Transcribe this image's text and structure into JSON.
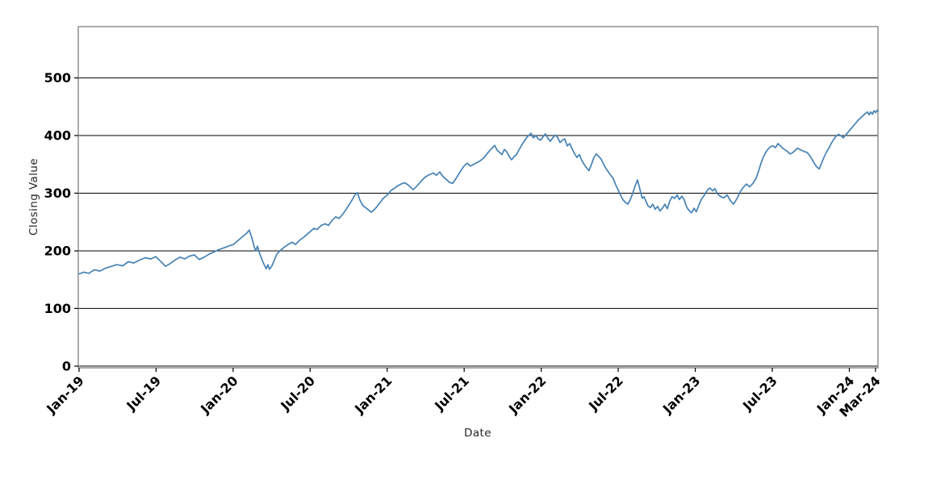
{
  "chart_data": {
    "type": "line",
    "title": "",
    "xlabel": "Date",
    "ylabel": "Closing Value",
    "legend": "none",
    "grid": "horizontal-black-lines",
    "xlim": [
      2018.995,
      2024.186
    ],
    "ylim": [
      -3,
      589
    ],
    "y_ticks": [
      0,
      100,
      200,
      300,
      400,
      500
    ],
    "x_ticks": [
      {
        "t": 2019.0,
        "label": "Jan-19"
      },
      {
        "t": 2019.5,
        "label": "Jul-19"
      },
      {
        "t": 2020.0,
        "label": "Jan-20"
      },
      {
        "t": 2020.5,
        "label": "Jul-20"
      },
      {
        "t": 2021.0,
        "label": "Jan-21"
      },
      {
        "t": 2021.5,
        "label": "Jul-21"
      },
      {
        "t": 2022.0,
        "label": "Jan-22"
      },
      {
        "t": 2022.5,
        "label": "Jul-22"
      },
      {
        "t": 2023.0,
        "label": "Jan-23"
      },
      {
        "t": 2023.5,
        "label": "Jul-23"
      },
      {
        "t": 2024.0,
        "label": "Jan-24"
      },
      {
        "t": 2024.17,
        "label": "Mar-24"
      }
    ],
    "colors": {
      "line": "#4682B4",
      "grid": "#000000",
      "spine": "#8a8a8a",
      "tick_text": "#000000",
      "axis_label_text": "#262626"
    },
    "series": [
      {
        "name": "Closing Value",
        "color": "#4682B4",
        "points": [
          [
            2019.0,
            160
          ],
          [
            2019.031,
            163
          ],
          [
            2019.063,
            161
          ],
          [
            2019.1,
            167
          ],
          [
            2019.136,
            165
          ],
          [
            2019.173,
            170
          ],
          [
            2019.21,
            173
          ],
          [
            2019.246,
            176
          ],
          [
            2019.283,
            174
          ],
          [
            2019.32,
            181
          ],
          [
            2019.356,
            179
          ],
          [
            2019.393,
            184
          ],
          [
            2019.43,
            188
          ],
          [
            2019.466,
            186
          ],
          [
            2019.498,
            190
          ],
          [
            2019.529,
            182
          ],
          [
            2019.561,
            173
          ],
          [
            2019.592,
            178
          ],
          [
            2019.623,
            184
          ],
          [
            2019.655,
            189
          ],
          [
            2019.686,
            186
          ],
          [
            2019.718,
            191
          ],
          [
            2019.749,
            193
          ],
          [
            2019.78,
            185
          ],
          [
            2019.812,
            189
          ],
          [
            2019.843,
            194
          ],
          [
            2019.875,
            198
          ],
          [
            2019.906,
            202
          ],
          [
            2019.938,
            205
          ],
          [
            2019.969,
            208
          ],
          [
            2020.001,
            211
          ],
          [
            2020.032,
            218
          ],
          [
            2020.063,
            225
          ],
          [
            2020.09,
            231
          ],
          [
            2020.105,
            236
          ],
          [
            2020.121,
            223
          ],
          [
            2020.137,
            207
          ],
          [
            2020.147,
            200
          ],
          [
            2020.158,
            208
          ],
          [
            2020.173,
            195
          ],
          [
            2020.189,
            184
          ],
          [
            2020.2,
            177
          ],
          [
            2020.215,
            169
          ],
          [
            2020.226,
            176
          ],
          [
            2020.236,
            168
          ],
          [
            2020.252,
            174
          ],
          [
            2020.268,
            184
          ],
          [
            2020.283,
            194
          ],
          [
            2020.304,
            200
          ],
          [
            2020.33,
            206
          ],
          [
            2020.357,
            211
          ],
          [
            2020.383,
            215
          ],
          [
            2020.404,
            211
          ],
          [
            2020.43,
            218
          ],
          [
            2020.456,
            223
          ],
          [
            2020.482,
            229
          ],
          [
            2020.503,
            234
          ],
          [
            2020.524,
            239
          ],
          [
            2020.545,
            237
          ],
          [
            2020.571,
            244
          ],
          [
            2020.598,
            247
          ],
          [
            2020.619,
            244
          ],
          [
            2020.64,
            252
          ],
          [
            2020.666,
            259
          ],
          [
            2020.687,
            256
          ],
          [
            2020.713,
            264
          ],
          [
            2020.739,
            274
          ],
          [
            2020.765,
            285
          ],
          [
            2020.791,
            297
          ],
          [
            2020.807,
            301
          ],
          [
            2020.823,
            288
          ],
          [
            2020.844,
            278
          ],
          [
            2020.87,
            273
          ],
          [
            2020.896,
            267
          ],
          [
            2020.922,
            273
          ],
          [
            2020.949,
            282
          ],
          [
            2020.975,
            291
          ],
          [
            2021.001,
            297
          ],
          [
            2021.022,
            304
          ],
          [
            2021.043,
            308
          ],
          [
            2021.064,
            312
          ],
          [
            2021.09,
            316
          ],
          [
            2021.116,
            318
          ],
          [
            2021.142,
            313
          ],
          [
            2021.169,
            306
          ],
          [
            2021.195,
            313
          ],
          [
            2021.221,
            321
          ],
          [
            2021.247,
            328
          ],
          [
            2021.273,
            332
          ],
          [
            2021.3,
            335
          ],
          [
            2021.32,
            331
          ],
          [
            2021.341,
            337
          ],
          [
            2021.362,
            329
          ],
          [
            2021.383,
            324
          ],
          [
            2021.404,
            319
          ],
          [
            2021.425,
            317
          ],
          [
            2021.446,
            325
          ],
          [
            2021.467,
            334
          ],
          [
            2021.483,
            341
          ],
          [
            2021.499,
            347
          ],
          [
            2021.52,
            352
          ],
          [
            2021.54,
            347
          ],
          [
            2021.561,
            350
          ],
          [
            2021.582,
            353
          ],
          [
            2021.603,
            356
          ],
          [
            2021.63,
            362
          ],
          [
            2021.656,
            371
          ],
          [
            2021.677,
            377
          ],
          [
            2021.698,
            383
          ],
          [
            2021.713,
            375
          ],
          [
            2021.729,
            371
          ],
          [
            2021.745,
            367
          ],
          [
            2021.761,
            376
          ],
          [
            2021.776,
            372
          ],
          [
            2021.792,
            364
          ],
          [
            2021.808,
            358
          ],
          [
            2021.823,
            363
          ],
          [
            2021.839,
            367
          ],
          [
            2021.86,
            377
          ],
          [
            2021.881,
            387
          ],
          [
            2021.902,
            395
          ],
          [
            2021.918,
            400
          ],
          [
            2021.934,
            404
          ],
          [
            2021.949,
            396
          ],
          [
            2021.965,
            400
          ],
          [
            2021.981,
            394
          ],
          [
            2021.996,
            392
          ],
          [
            2022.012,
            398
          ],
          [
            2022.028,
            403
          ],
          [
            2022.044,
            395
          ],
          [
            2022.059,
            390
          ],
          [
            2022.075,
            396
          ],
          [
            2022.091,
            401
          ],
          [
            2022.106,
            397
          ],
          [
            2022.122,
            388
          ],
          [
            2022.138,
            392
          ],
          [
            2022.153,
            394
          ],
          [
            2022.169,
            382
          ],
          [
            2022.185,
            386
          ],
          [
            2022.201,
            377
          ],
          [
            2022.216,
            369
          ],
          [
            2022.232,
            362
          ],
          [
            2022.248,
            367
          ],
          [
            2022.263,
            357
          ],
          [
            2022.279,
            350
          ],
          [
            2022.295,
            344
          ],
          [
            2022.31,
            339
          ],
          [
            2022.326,
            350
          ],
          [
            2022.342,
            362
          ],
          [
            2022.357,
            368
          ],
          [
            2022.373,
            364
          ],
          [
            2022.389,
            359
          ],
          [
            2022.404,
            351
          ],
          [
            2022.42,
            343
          ],
          [
            2022.436,
            337
          ],
          [
            2022.451,
            331
          ],
          [
            2022.467,
            326
          ],
          [
            2022.483,
            315
          ],
          [
            2022.499,
            306
          ],
          [
            2022.514,
            297
          ],
          [
            2022.53,
            289
          ],
          [
            2022.546,
            284
          ],
          [
            2022.562,
            281
          ],
          [
            2022.577,
            288
          ],
          [
            2022.593,
            299
          ],
          [
            2022.609,
            312
          ],
          [
            2022.625,
            323
          ],
          [
            2022.635,
            313
          ],
          [
            2022.646,
            301
          ],
          [
            2022.656,
            291
          ],
          [
            2022.667,
            294
          ],
          [
            2022.677,
            288
          ],
          [
            2022.693,
            278
          ],
          [
            2022.709,
            275
          ],
          [
            2022.724,
            281
          ],
          [
            2022.74,
            272
          ],
          [
            2022.756,
            277
          ],
          [
            2022.771,
            269
          ],
          [
            2022.787,
            274
          ],
          [
            2022.803,
            281
          ],
          [
            2022.819,
            273
          ],
          [
            2022.834,
            286
          ],
          [
            2022.85,
            294
          ],
          [
            2022.866,
            291
          ],
          [
            2022.882,
            297
          ],
          [
            2022.897,
            289
          ],
          [
            2022.913,
            295
          ],
          [
            2022.929,
            288
          ],
          [
            2022.944,
            276
          ],
          [
            2022.96,
            270
          ],
          [
            2022.976,
            266
          ],
          [
            2022.992,
            274
          ],
          [
            2023.007,
            268
          ],
          [
            2023.023,
            279
          ],
          [
            2023.039,
            289
          ],
          [
            2023.06,
            297
          ],
          [
            2023.081,
            306
          ],
          [
            2023.096,
            309
          ],
          [
            2023.112,
            304
          ],
          [
            2023.128,
            308
          ],
          [
            2023.144,
            299
          ],
          [
            2023.165,
            294
          ],
          [
            2023.186,
            292
          ],
          [
            2023.207,
            297
          ],
          [
            2023.228,
            287
          ],
          [
            2023.249,
            281
          ],
          [
            2023.27,
            290
          ],
          [
            2023.291,
            302
          ],
          [
            2023.311,
            310
          ],
          [
            2023.332,
            316
          ],
          [
            2023.353,
            311
          ],
          [
            2023.374,
            317
          ],
          [
            2023.395,
            326
          ],
          [
            2023.411,
            338
          ],
          [
            2023.427,
            352
          ],
          [
            2023.442,
            363
          ],
          [
            2023.458,
            371
          ],
          [
            2023.474,
            377
          ],
          [
            2023.49,
            381
          ],
          [
            2023.505,
            382
          ],
          [
            2023.521,
            379
          ],
          [
            2023.537,
            386
          ],
          [
            2023.553,
            382
          ],
          [
            2023.568,
            378
          ],
          [
            2023.584,
            375
          ],
          [
            2023.6,
            372
          ],
          [
            2023.615,
            368
          ],
          [
            2023.631,
            370
          ],
          [
            2023.647,
            374
          ],
          [
            2023.663,
            378
          ],
          [
            2023.678,
            376
          ],
          [
            2023.694,
            374
          ],
          [
            2023.71,
            372
          ],
          [
            2023.725,
            371
          ],
          [
            2023.741,
            366
          ],
          [
            2023.757,
            359
          ],
          [
            2023.772,
            352
          ],
          [
            2023.788,
            346
          ],
          [
            2023.804,
            342
          ],
          [
            2023.82,
            352
          ],
          [
            2023.835,
            362
          ],
          [
            2023.851,
            371
          ],
          [
            2023.867,
            378
          ],
          [
            2023.882,
            386
          ],
          [
            2023.898,
            393
          ],
          [
            2023.914,
            399
          ],
          [
            2023.93,
            402
          ],
          [
            2023.945,
            400
          ],
          [
            2023.961,
            396
          ],
          [
            2023.977,
            401
          ],
          [
            2023.992,
            406
          ],
          [
            2024.008,
            411
          ],
          [
            2024.024,
            416
          ],
          [
            2024.04,
            421
          ],
          [
            2024.055,
            426
          ],
          [
            2024.071,
            430
          ],
          [
            2024.087,
            434
          ],
          [
            2024.102,
            438
          ],
          [
            2024.118,
            441
          ],
          [
            2024.129,
            436
          ],
          [
            2024.139,
            441
          ],
          [
            2024.15,
            437
          ],
          [
            2024.16,
            443
          ],
          [
            2024.171,
            440
          ],
          [
            2024.181,
            444
          ],
          [
            2024.186,
            442
          ]
        ]
      }
    ]
  }
}
